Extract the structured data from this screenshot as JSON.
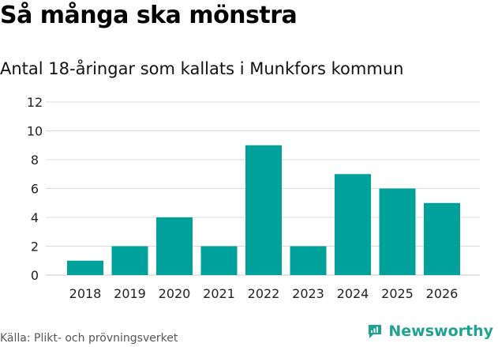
{
  "title": "Så många ska mönstra",
  "subtitle": "Antal 18-åringar som kallats i Munkfors kommun",
  "source": "Källa: Plikt- och prövningsverket",
  "brand": {
    "name": "Newsworthy",
    "icon": "newsworthy-logo-icon"
  },
  "colors": {
    "bar": "#00a19a",
    "grid": "#dcdcdc",
    "brand": "#1fa294"
  },
  "chart_data": {
    "type": "bar",
    "title": "Så många ska mönstra",
    "subtitle": "Antal 18-åringar som kallats i Munkfors kommun",
    "xlabel": "",
    "ylabel": "",
    "categories": [
      "2018",
      "2019",
      "2020",
      "2021",
      "2022",
      "2023",
      "2024",
      "2025",
      "2026"
    ],
    "values": [
      1,
      2,
      4,
      2,
      9,
      2,
      7,
      6,
      5
    ],
    "ylim": [
      0,
      12
    ],
    "yticks": [
      0,
      2,
      4,
      6,
      8,
      10,
      12
    ],
    "grid": true,
    "legend": "none"
  }
}
